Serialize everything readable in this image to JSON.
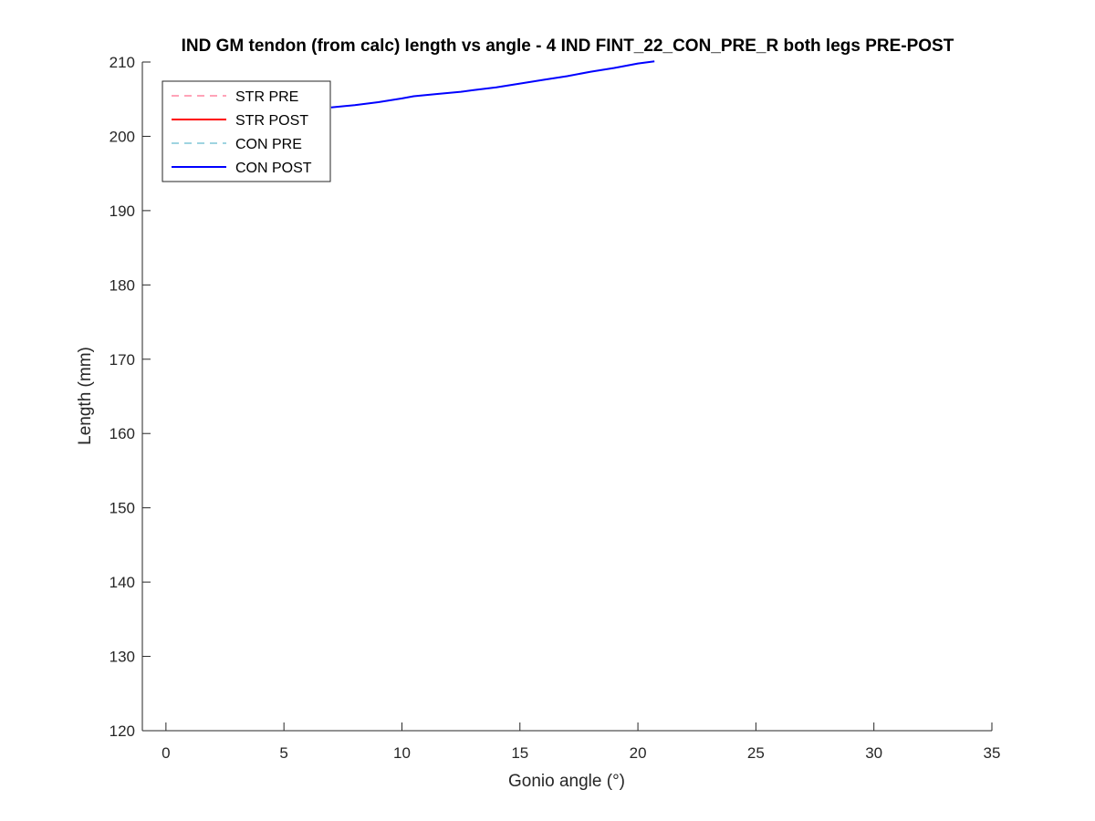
{
  "chart_data": {
    "type": "line",
    "title": "IND GM tendon (from calc) length vs angle - 4 IND FINT_22_CON_PRE_R both legs PRE-POST",
    "xlabel": "Gonio angle (°)",
    "ylabel": "Length (mm)",
    "xlim": [
      -1,
      35
    ],
    "ylim": [
      120,
      210
    ],
    "xticks": [
      0,
      5,
      10,
      15,
      20,
      25,
      30,
      35
    ],
    "yticks": [
      120,
      130,
      140,
      150,
      160,
      170,
      180,
      190,
      200,
      210
    ],
    "grid": false,
    "legend_position": "top-left",
    "series": [
      {
        "name": "STR PRE",
        "color": "#FFA3B8",
        "dash": "dashed",
        "x": [],
        "y": []
      },
      {
        "name": "STR POST",
        "color": "#FF0000",
        "dash": "solid",
        "x": [],
        "y": []
      },
      {
        "name": "CON PRE",
        "color": "#9FD4E0",
        "dash": "dashed",
        "x": [],
        "y": []
      },
      {
        "name": "CON POST",
        "color": "#0000FF",
        "dash": "solid",
        "x": [
          7.0,
          8.0,
          9.0,
          10.0,
          10.5,
          11.5,
          12.5,
          13.0,
          14.0,
          15.0,
          16.0,
          17.0,
          18.0,
          19.0,
          20.0,
          20.7
        ],
        "y": [
          203.9,
          204.2,
          204.6,
          205.1,
          205.4,
          205.7,
          206.0,
          206.2,
          206.6,
          207.1,
          207.6,
          208.1,
          208.7,
          209.2,
          209.8,
          210.1
        ]
      }
    ]
  }
}
